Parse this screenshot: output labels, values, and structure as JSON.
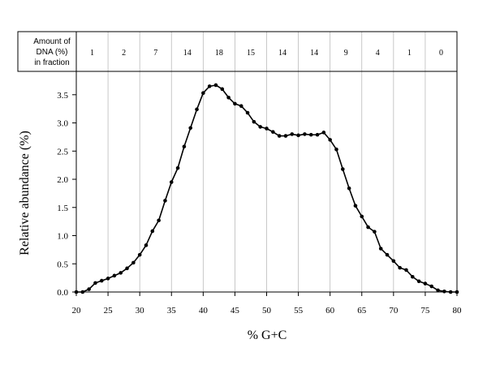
{
  "chart_data": {
    "type": "line",
    "title": "",
    "xlabel": "% G+C",
    "ylabel": "Relative abundance (%)",
    "xlim": [
      20,
      80
    ],
    "ylim": [
      0,
      3.9
    ],
    "xticks": [
      20,
      25,
      30,
      35,
      40,
      45,
      50,
      55,
      60,
      65,
      70,
      75,
      80
    ],
    "yticks": [
      0.0,
      0.5,
      1.0,
      1.5,
      2.0,
      2.5,
      3.0,
      3.5
    ],
    "ytick_labels": [
      "0.0",
      "0.5",
      "1.0",
      "1.5",
      "2.0",
      "2.5",
      "3.0",
      "3.5"
    ],
    "grid": "vertical lines at each 5% G+C",
    "marker": "filled circle",
    "line_color": "#000000",
    "grid_color": "#bbbbbb",
    "fraction_table": {
      "header": [
        "Amount of",
        "DNA (%)",
        "in fraction"
      ],
      "values": [
        "1",
        "2",
        "7",
        "14",
        "18",
        "15",
        "14",
        "14",
        "9",
        "4",
        "1",
        "0"
      ]
    },
    "series": [
      {
        "x": [
          20,
          21,
          22,
          23,
          24,
          25,
          26,
          27,
          28,
          29,
          30,
          31,
          32,
          33,
          34,
          35,
          36,
          37,
          38,
          39,
          40,
          41,
          42,
          43,
          44,
          45,
          46,
          47,
          48,
          49,
          50,
          51,
          52,
          53,
          54,
          55,
          56,
          57,
          58,
          59,
          60,
          61,
          62,
          63,
          64,
          65,
          66,
          67,
          68,
          69,
          70,
          71,
          72,
          73,
          74,
          75,
          76,
          77,
          78,
          79,
          80
        ],
        "y": [
          0.0,
          0.0,
          0.05,
          0.16,
          0.2,
          0.24,
          0.29,
          0.34,
          0.42,
          0.52,
          0.66,
          0.83,
          1.08,
          1.27,
          1.62,
          1.95,
          2.2,
          2.58,
          2.91,
          3.24,
          3.53,
          3.65,
          3.67,
          3.6,
          3.45,
          3.34,
          3.3,
          3.18,
          3.02,
          2.93,
          2.9,
          2.84,
          2.77,
          2.77,
          2.8,
          2.78,
          2.8,
          2.79,
          2.79,
          2.83,
          2.7,
          2.53,
          2.18,
          1.84,
          1.53,
          1.34,
          1.15,
          1.07,
          0.77,
          0.66,
          0.55,
          0.43,
          0.39,
          0.27,
          0.19,
          0.15,
          0.1,
          0.03,
          0.01,
          0.0,
          0.0
        ]
      }
    ]
  }
}
